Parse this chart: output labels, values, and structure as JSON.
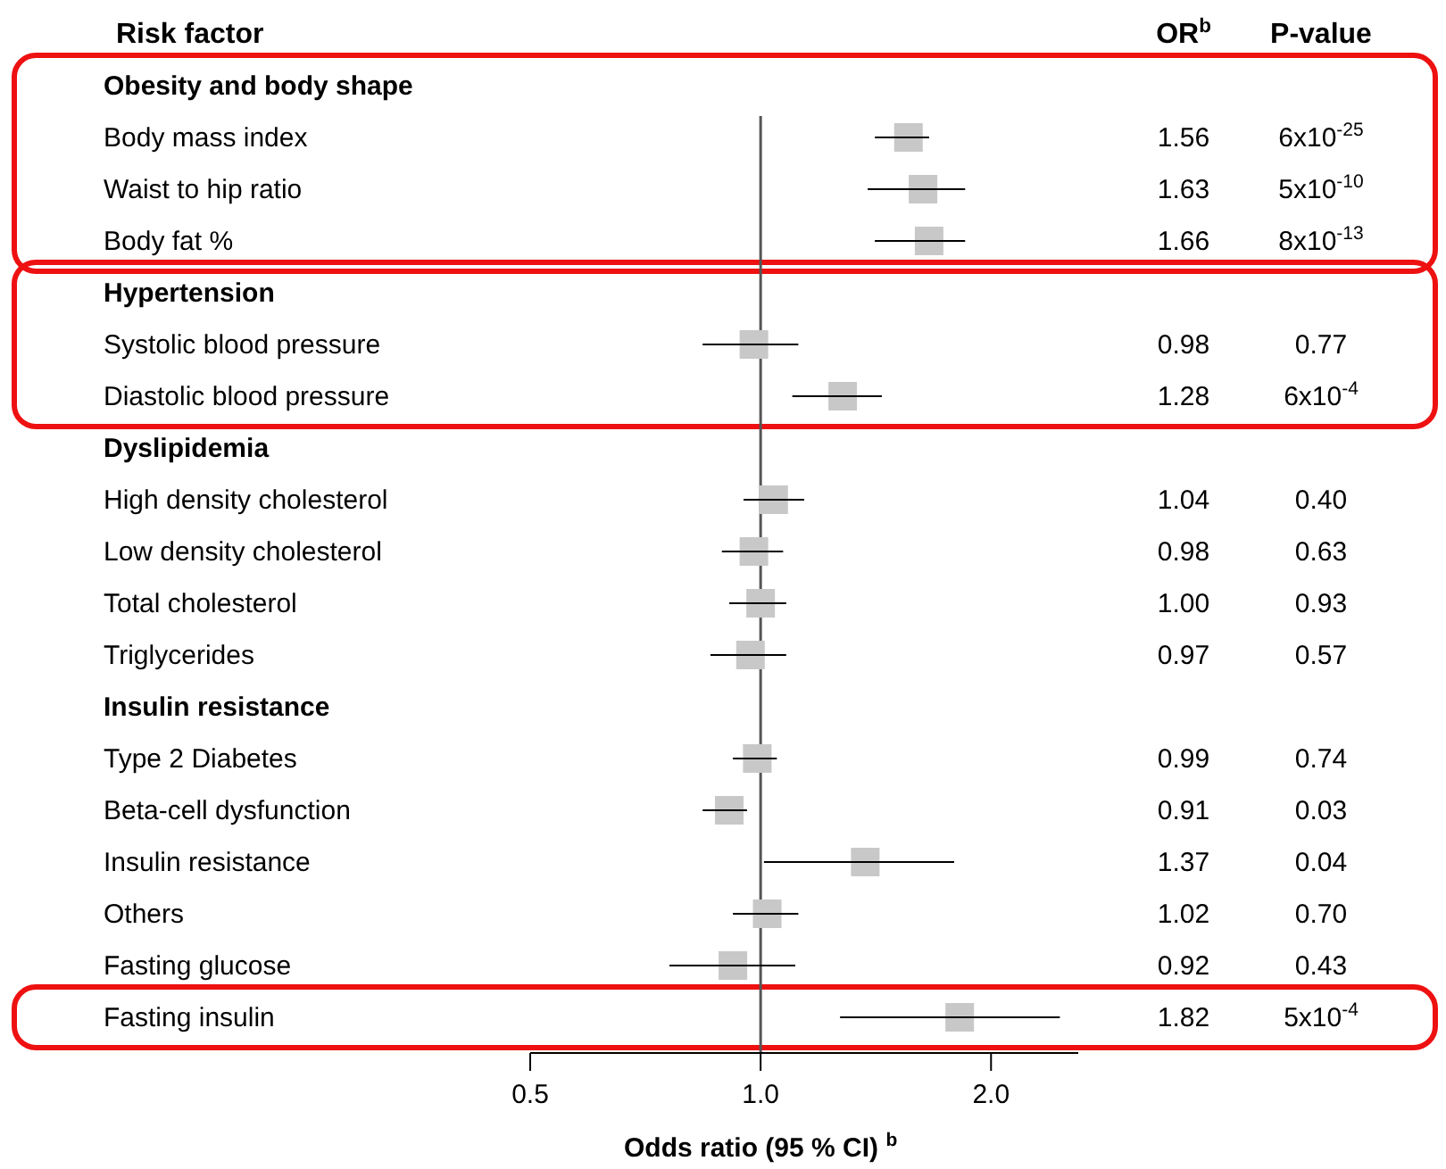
{
  "chart_data": {
    "type": "scatter",
    "orientation": "horizontal",
    "ylabel": "Risk factor",
    "xlabel": "Odds ratio (95 % CI) $^{b}$",
    "categories": [
      "Obesity and body shape",
      "Body mass index",
      "Waist to hip ratio",
      "Body fat %",
      "Hypertension",
      "Systolic blood pressure",
      "Diastolic blood pressure",
      "Dyslipidemia",
      "High density cholesterol",
      "Low density cholesterol",
      "Total cholesterol",
      "Triglycerides",
      "Insulin resistance",
      "Type 2 Diabetes",
      "Beta-cell dysfunction",
      "Insulin resistance",
      "Others",
      "Fasting glucose",
      "Fasting insulin"
    ],
    "values": [
      null,
      1.56,
      1.63,
      1.66,
      null,
      0.98,
      1.28,
      null,
      1.04,
      0.98,
      1.0,
      0.97,
      null,
      0.99,
      0.91,
      1.37,
      1.02,
      0.92,
      1.82
    ],
    "value_labels": [
      null,
      "1.56",
      "1.63",
      "1.66",
      null,
      "0.98",
      "1.28",
      null,
      "1.04",
      "0.98",
      "1.00",
      "0.97",
      null,
      "0.99",
      "0.91",
      "1.37",
      "1.02",
      "0.92",
      "1.82"
    ],
    "errors": [
      null,
      [
        1.41,
        1.66
      ],
      [
        1.38,
        1.85
      ],
      [
        1.41,
        1.85
      ],
      null,
      [
        0.84,
        1.12
      ],
      [
        1.1,
        1.44
      ],
      null,
      [
        0.95,
        1.14
      ],
      [
        0.89,
        1.07
      ],
      [
        0.91,
        1.08
      ],
      [
        0.86,
        1.08
      ],
      null,
      [
        0.92,
        1.05
      ],
      [
        0.84,
        0.96
      ],
      [
        1.01,
        1.79
      ],
      [
        0.92,
        1.12
      ],
      [
        0.76,
        1.11
      ],
      [
        1.27,
        2.46
      ]
    ],
    "color": "#c8c8c8",
    "marker": "square",
    "log": "x",
    "xlim": [
      0.5,
      2.6
    ],
    "xticks": [
      0.5,
      {
        "value": 1,
        "label": "1.0"
      },
      {
        "value": 2,
        "label": "2.0"
      }
    ],
    "ref_lines": [
      {
        "axis": "x",
        "value": 1,
        "color": "#555555"
      }
    ],
    "annotations": [
      "OR$^{b}$",
      "P-value",
      "6x10$^{-25}$",
      "5x10$^{-10}$",
      "8x10$^{-13}$",
      "0.77",
      "6x10$^{-4}$",
      "0.40",
      "0.63",
      "0.93",
      "0.57",
      "0.74",
      "0.03",
      "0.04",
      "0.70",
      "0.43",
      "5x10$^{-4}$"
    ]
  }
}
